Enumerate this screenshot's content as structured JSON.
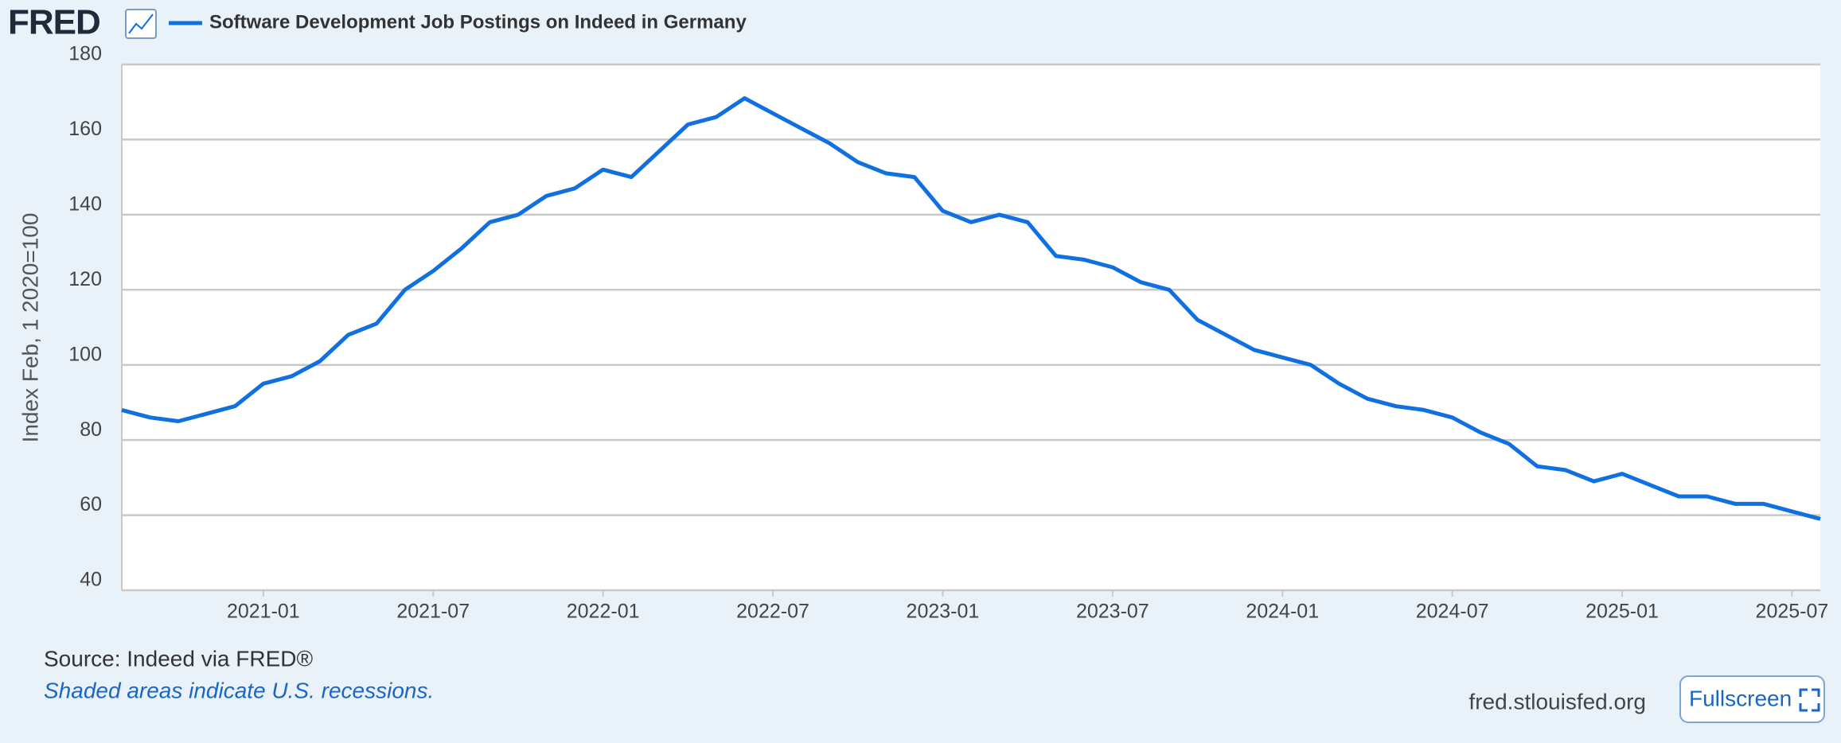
{
  "brand": "FRED",
  "chart_data": {
    "type": "line",
    "y_label": "Index Feb, 1 2020=100",
    "x": [
      "2020-08",
      "2020-09",
      "2020-10",
      "2020-11",
      "2020-12",
      "2021-01",
      "2021-02",
      "2021-03",
      "2021-04",
      "2021-05",
      "2021-06",
      "2021-07",
      "2021-08",
      "2021-09",
      "2021-10",
      "2021-11",
      "2021-12",
      "2022-01",
      "2022-02",
      "2022-03",
      "2022-04",
      "2022-05",
      "2022-06",
      "2022-07",
      "2022-08",
      "2022-09",
      "2022-10",
      "2022-11",
      "2022-12",
      "2023-01",
      "2023-02",
      "2023-03",
      "2023-04",
      "2023-05",
      "2023-06",
      "2023-07",
      "2023-08",
      "2023-09",
      "2023-10",
      "2023-11",
      "2023-12",
      "2024-01",
      "2024-02",
      "2024-03",
      "2024-04",
      "2024-05",
      "2024-06",
      "2024-07",
      "2024-08",
      "2024-09",
      "2024-10",
      "2024-11",
      "2024-12",
      "2025-01",
      "2025-02",
      "2025-03",
      "2025-04",
      "2025-05",
      "2025-06",
      "2025-07",
      "2025-08"
    ],
    "series": [
      {
        "name": "Software Development Job Postings on Indeed in Germany",
        "color": "#1170e0",
        "values": [
          88,
          86,
          85,
          87,
          89,
          95,
          97,
          101,
          108,
          111,
          120,
          125,
          131,
          138,
          140,
          145,
          147,
          152,
          150,
          157,
          164,
          166,
          171,
          167,
          163,
          159,
          154,
          151,
          150,
          141,
          138,
          140,
          138,
          129,
          128,
          126,
          122,
          120,
          112,
          108,
          104,
          102,
          100,
          95,
          91,
          89,
          88,
          86,
          82,
          79,
          73,
          72,
          69,
          71,
          68,
          65,
          65,
          63,
          63,
          61,
          59
        ]
      }
    ],
    "xlim": [
      "2020-08",
      "2025-08"
    ],
    "xticks": [
      "2021-01",
      "2021-07",
      "2022-01",
      "2022-07",
      "2023-01",
      "2023-07",
      "2024-01",
      "2024-07",
      "2025-01",
      "2025-07"
    ],
    "ylim": [
      40,
      180
    ],
    "yticks": [
      40,
      60,
      80,
      100,
      120,
      140,
      160,
      180
    ],
    "grid": true
  },
  "footer": {
    "source": "Source: Indeed via FRED®",
    "note": "Shaded areas indicate U.S. recessions.",
    "site": "fred.stlouisfed.org",
    "button": "Fullscreen"
  }
}
